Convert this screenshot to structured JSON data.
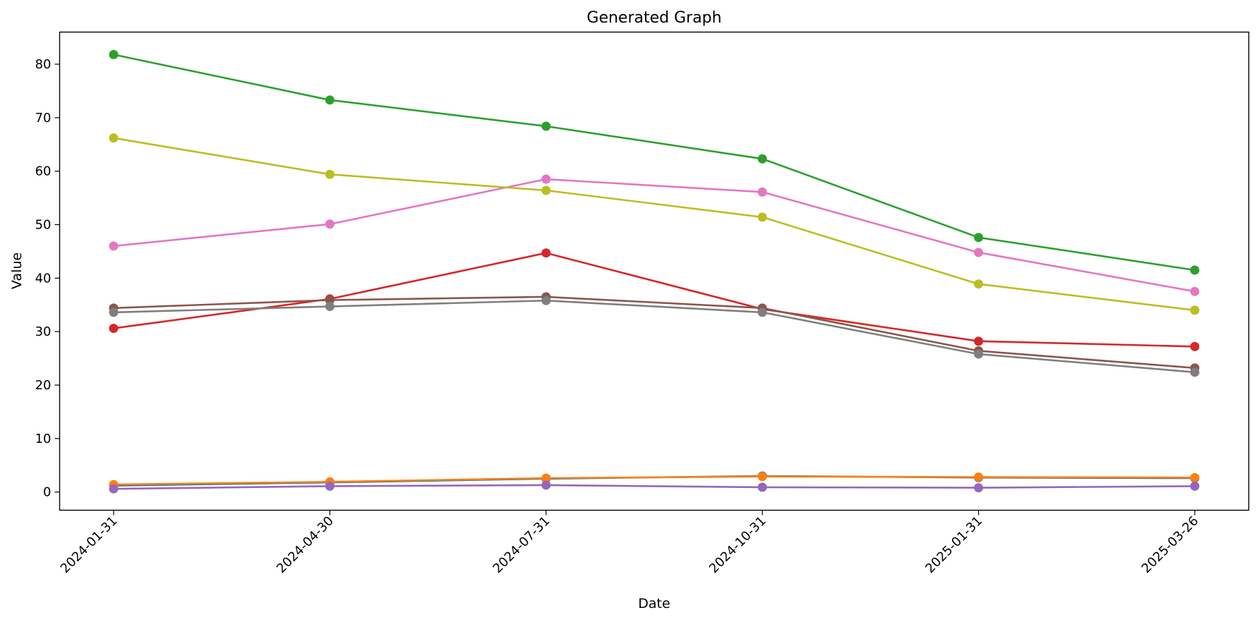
{
  "chart_data": {
    "type": "line",
    "title": "Generated Graph",
    "xlabel": "Date",
    "ylabel": "Value",
    "x": [
      "2024-01-31",
      "2024-04-30",
      "2024-07-31",
      "2024-10-31",
      "2025-01-31",
      "2025-03-26"
    ],
    "ylim": [
      -3.4,
      86
    ],
    "yticks": [
      0,
      10,
      20,
      30,
      40,
      50,
      60,
      70,
      80
    ],
    "grid": false,
    "legend": "none",
    "series": [
      {
        "color": "#1f77b4",
        "values": [
          1.2,
          1.8,
          2.5,
          3.0,
          2.7,
          2.6
        ]
      },
      {
        "color": "#ff7f0e",
        "values": [
          1.4,
          1.9,
          2.6,
          2.9,
          2.8,
          2.7
        ]
      },
      {
        "color": "#2ca02c",
        "values": [
          81.8,
          73.3,
          68.4,
          62.3,
          47.6,
          41.5
        ]
      },
      {
        "color": "#d62728",
        "values": [
          30.6,
          36.1,
          44.7,
          34.2,
          28.2,
          27.2
        ]
      },
      {
        "color": "#9467bd",
        "values": [
          0.6,
          1.1,
          1.3,
          0.9,
          0.8,
          1.1
        ]
      },
      {
        "color": "#8c564b",
        "values": [
          34.4,
          35.9,
          36.5,
          34.4,
          26.4,
          23.2
        ]
      },
      {
        "color": "#e377c2",
        "values": [
          46.0,
          50.1,
          58.5,
          56.1,
          44.8,
          37.5
        ]
      },
      {
        "color": "#7f7f7f",
        "values": [
          33.6,
          34.7,
          35.8,
          33.6,
          25.8,
          22.4
        ]
      },
      {
        "color": "#bcbd22",
        "values": [
          66.2,
          59.4,
          56.4,
          51.4,
          38.9,
          34.0
        ]
      }
    ]
  }
}
